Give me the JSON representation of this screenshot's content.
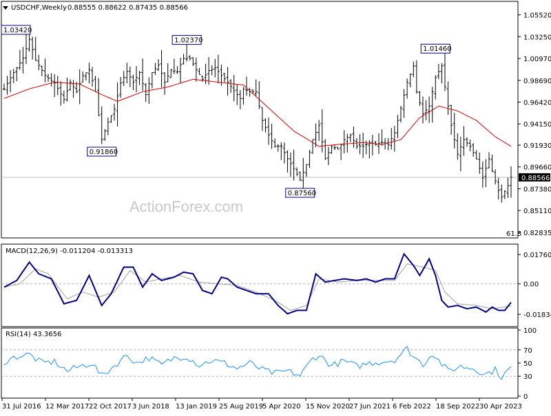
{
  "header": {
    "symbol_line": "USDCHF,Weekly",
    "ohlc": "0.88555 0.88622 0.87435 0.88566"
  },
  "watermark": "ActionForex.com",
  "colors": {
    "price": "#000000",
    "ma": "#d40000",
    "macd": "#000080",
    "signal": "#a0a0a0",
    "rsi": "#1e90ff",
    "grid_dash": "#b0b0b0",
    "current_line": "#bdbdbd"
  },
  "chart_data": [
    {
      "type": "line",
      "panel": "price",
      "ylim": [
        0.8239,
        1.065
      ],
      "y_ticks": [
        "1.05520",
        "1.03250",
        "1.00970",
        "0.98690",
        "0.96420",
        "0.94150",
        "0.91930",
        "0.89660",
        "0.87380",
        "0.85110",
        "0.82835"
      ],
      "y_tick_values": [
        1.0552,
        1.0325,
        1.0097,
        0.9869,
        0.9642,
        0.9415,
        0.9193,
        0.8966,
        0.8738,
        0.8511,
        0.82835
      ],
      "x_labels": [
        "31 Jul 2016",
        "12 Mar 2017",
        "22 Oct 2017",
        "3 Jun 2018",
        "13 Jan 2019",
        "25 Aug 2019",
        "5 Apr 2020",
        "15 Nov 2020",
        "27 Jun 2021",
        "6 Feb 2022",
        "18 Sep 2022",
        "30 Apr 2023"
      ],
      "current_price": 0.88566,
      "current_price_label": "0.88566",
      "fib_label": "61.8",
      "annotations": [
        {
          "text": "1.03420",
          "value": 1.0342,
          "bar": 0
        },
        {
          "text": "1.02370",
          "value": 1.0237,
          "bar": 58
        },
        {
          "text": "0.91860",
          "value": 0.9186,
          "bar": 31
        },
        {
          "text": "0.87560",
          "value": 0.8756,
          "bar": 94
        },
        {
          "text": "1.01460",
          "value": 1.0146,
          "bar": 137
        }
      ],
      "close_anchors": [
        [
          0,
          0.978
        ],
        [
          3,
          0.995
        ],
        [
          6,
          1.01
        ],
        [
          8,
          1.03
        ],
        [
          10,
          1.008
        ],
        [
          13,
          0.992
        ],
        [
          16,
          0.984
        ],
        [
          19,
          0.967
        ],
        [
          21,
          0.985
        ],
        [
          23,
          0.975
        ],
        [
          25,
          0.992
        ],
        [
          27,
          0.998
        ],
        [
          29,
          0.975
        ],
        [
          31,
          0.925
        ],
        [
          33,
          0.943
        ],
        [
          35,
          0.957
        ],
        [
          37,
          0.984
        ],
        [
          39,
          0.996
        ],
        [
          41,
          0.985
        ],
        [
          43,
          0.995
        ],
        [
          45,
          0.972
        ],
        [
          47,
          0.995
        ],
        [
          49,
          1.003
        ],
        [
          51,
          0.985
        ],
        [
          53,
          0.998
        ],
        [
          55,
          0.996
        ],
        [
          57,
          1.01
        ],
        [
          59,
          1.01
        ],
        [
          61,
          0.998
        ],
        [
          63,
          0.988
        ],
        [
          65,
          0.997
        ],
        [
          67,
          1.0
        ],
        [
          69,
          0.992
        ],
        [
          71,
          0.985
        ],
        [
          73,
          0.976
        ],
        [
          75,
          0.968
        ],
        [
          76,
          0.978
        ],
        [
          78,
          0.975
        ],
        [
          80,
          0.975
        ],
        [
          82,
          0.945
        ],
        [
          84,
          0.93
        ],
        [
          86,
          0.918
        ],
        [
          88,
          0.918
        ],
        [
          90,
          0.905
        ],
        [
          92,
          0.895
        ],
        [
          94,
          0.883
        ],
        [
          96,
          0.899
        ],
        [
          98,
          0.925
        ],
        [
          100,
          0.94
        ],
        [
          102,
          0.905
        ],
        [
          104,
          0.918
        ],
        [
          106,
          0.915
        ],
        [
          108,
          0.925
        ],
        [
          110,
          0.93
        ],
        [
          112,
          0.918
        ],
        [
          114,
          0.918
        ],
        [
          116,
          0.922
        ],
        [
          118,
          0.92
        ],
        [
          120,
          0.922
        ],
        [
          122,
          0.92
        ],
        [
          124,
          0.932
        ],
        [
          126,
          0.958
        ],
        [
          128,
          0.985
        ],
        [
          130,
          1.002
        ],
        [
          131,
          0.975
        ],
        [
          133,
          0.952
        ],
        [
          135,
          0.96
        ],
        [
          137,
          0.99
        ],
        [
          139,
          1.002
        ],
        [
          140,
          0.98
        ],
        [
          142,
          0.94
        ],
        [
          144,
          0.91
        ],
        [
          146,
          0.925
        ],
        [
          148,
          0.918
        ],
        [
          150,
          0.905
        ],
        [
          152,
          0.885
        ],
        [
          154,
          0.905
        ],
        [
          155,
          0.892
        ],
        [
          157,
          0.872
        ],
        [
          158,
          0.865
        ],
        [
          160,
          0.877
        ],
        [
          161,
          0.8857
        ]
      ],
      "ma_anchors": [
        [
          0,
          0.968
        ],
        [
          8,
          0.978
        ],
        [
          16,
          0.985
        ],
        [
          24,
          0.983
        ],
        [
          31,
          0.972
        ],
        [
          36,
          0.965
        ],
        [
          44,
          0.975
        ],
        [
          52,
          0.98
        ],
        [
          60,
          0.988
        ],
        [
          68,
          0.985
        ],
        [
          76,
          0.982
        ],
        [
          84,
          0.958
        ],
        [
          92,
          0.934
        ],
        [
          100,
          0.918
        ],
        [
          106,
          0.92
        ],
        [
          114,
          0.922
        ],
        [
          120,
          0.92
        ],
        [
          126,
          0.925
        ],
        [
          132,
          0.948
        ],
        [
          138,
          0.96
        ],
        [
          144,
          0.955
        ],
        [
          150,
          0.945
        ],
        [
          156,
          0.928
        ],
        [
          161,
          0.918
        ]
      ]
    },
    {
      "type": "line",
      "panel": "macd",
      "title": "MACD(12,26,9) -0.011204 -0.013313",
      "ylim": [
        -0.0245,
        0.0218
      ],
      "y_ticks": [
        "0.017603",
        "0.00",
        "-0.01834"
      ],
      "y_tick_values": [
        0.017603,
        0.0,
        -0.01834
      ],
      "macd_anchors": [
        [
          0,
          -0.002
        ],
        [
          4,
          0.002
        ],
        [
          8,
          0.013
        ],
        [
          11,
          0.006
        ],
        [
          15,
          0.003
        ],
        [
          19,
          -0.012
        ],
        [
          23,
          -0.01
        ],
        [
          27,
          0.005
        ],
        [
          31,
          -0.013
        ],
        [
          34,
          -0.006
        ],
        [
          38,
          0.01
        ],
        [
          41,
          0.01
        ],
        [
          44,
          -0.002
        ],
        [
          47,
          0.006
        ],
        [
          50,
          0.002
        ],
        [
          54,
          0.004
        ],
        [
          57,
          0.007
        ],
        [
          60,
          0.006
        ],
        [
          63,
          -0.004
        ],
        [
          66,
          -0.006
        ],
        [
          69,
          0.004
        ],
        [
          71,
          0.003
        ],
        [
          74,
          -0.002
        ],
        [
          77,
          -0.004
        ],
        [
          80,
          -0.006
        ],
        [
          84,
          -0.006
        ],
        [
          87,
          -0.013
        ],
        [
          90,
          -0.018
        ],
        [
          93,
          -0.016
        ],
        [
          96,
          -0.016
        ],
        [
          99,
          0.006
        ],
        [
          102,
          0.001
        ],
        [
          105,
          0.002
        ],
        [
          108,
          0.003
        ],
        [
          112,
          0.002
        ],
        [
          115,
          0.003
        ],
        [
          118,
          0.001
        ],
        [
          121,
          0.003
        ],
        [
          124,
          0.003
        ],
        [
          127,
          0.018
        ],
        [
          130,
          0.011
        ],
        [
          132,
          0.005
        ],
        [
          135,
          0.015
        ],
        [
          137,
          0.005
        ],
        [
          139,
          -0.01
        ],
        [
          141,
          -0.014
        ],
        [
          144,
          -0.013
        ],
        [
          147,
          -0.015
        ],
        [
          150,
          -0.014
        ],
        [
          153,
          -0.017
        ],
        [
          155,
          -0.014
        ],
        [
          157,
          -0.016
        ],
        [
          159,
          -0.016
        ],
        [
          161,
          -0.0112
        ]
      ],
      "signal_anchors": [
        [
          0,
          -0.002
        ],
        [
          5,
          0.0
        ],
        [
          10,
          0.009
        ],
        [
          14,
          0.006
        ],
        [
          20,
          -0.009
        ],
        [
          25,
          -0.005
        ],
        [
          30,
          -0.008
        ],
        [
          35,
          -0.005
        ],
        [
          40,
          0.008
        ],
        [
          45,
          0.001
        ],
        [
          50,
          0.003
        ],
        [
          56,
          0.005
        ],
        [
          62,
          0.001
        ],
        [
          68,
          0.0
        ],
        [
          74,
          -0.001
        ],
        [
          80,
          -0.005
        ],
        [
          86,
          -0.01
        ],
        [
          91,
          -0.016
        ],
        [
          96,
          -0.013
        ],
        [
          100,
          0.003
        ],
        [
          106,
          0.001
        ],
        [
          112,
          0.002
        ],
        [
          118,
          0.002
        ],
        [
          124,
          0.002
        ],
        [
          128,
          0.012
        ],
        [
          133,
          0.01
        ],
        [
          137,
          0.008
        ],
        [
          140,
          -0.005
        ],
        [
          144,
          -0.012
        ],
        [
          150,
          -0.013
        ],
        [
          155,
          -0.015
        ],
        [
          161,
          -0.0133
        ]
      ]
    },
    {
      "type": "line",
      "panel": "rsi",
      "title": "RSI(14) 43.3656",
      "ylim": [
        0,
        100
      ],
      "y_ticks": [
        "100",
        "70",
        "50",
        "30",
        "0"
      ],
      "y_tick_values": [
        100,
        70,
        50,
        30,
        0
      ],
      "dashed_levels": [
        70,
        30
      ],
      "rsi_anchors": [
        [
          0,
          52
        ],
        [
          4,
          60
        ],
        [
          8,
          63
        ],
        [
          12,
          50
        ],
        [
          16,
          52
        ],
        [
          20,
          38
        ],
        [
          24,
          45
        ],
        [
          28,
          50
        ],
        [
          31,
          30
        ],
        [
          35,
          46
        ],
        [
          39,
          62
        ],
        [
          42,
          50
        ],
        [
          46,
          58
        ],
        [
          50,
          47
        ],
        [
          54,
          58
        ],
        [
          58,
          60
        ],
        [
          62,
          47
        ],
        [
          66,
          54
        ],
        [
          70,
          50
        ],
        [
          74,
          42
        ],
        [
          78,
          50
        ],
        [
          82,
          40
        ],
        [
          86,
          34
        ],
        [
          90,
          38
        ],
        [
          94,
          31
        ],
        [
          98,
          57
        ],
        [
          100,
          62
        ],
        [
          104,
          46
        ],
        [
          108,
          53
        ],
        [
          112,
          45
        ],
        [
          116,
          50
        ],
        [
          120,
          52
        ],
        [
          124,
          55
        ],
        [
          128,
          72
        ],
        [
          130,
          60
        ],
        [
          133,
          48
        ],
        [
          136,
          65
        ],
        [
          138,
          54
        ],
        [
          141,
          38
        ],
        [
          145,
          45
        ],
        [
          149,
          42
        ],
        [
          153,
          33
        ],
        [
          156,
          40
        ],
        [
          158,
          29
        ],
        [
          161,
          43
        ]
      ]
    }
  ]
}
